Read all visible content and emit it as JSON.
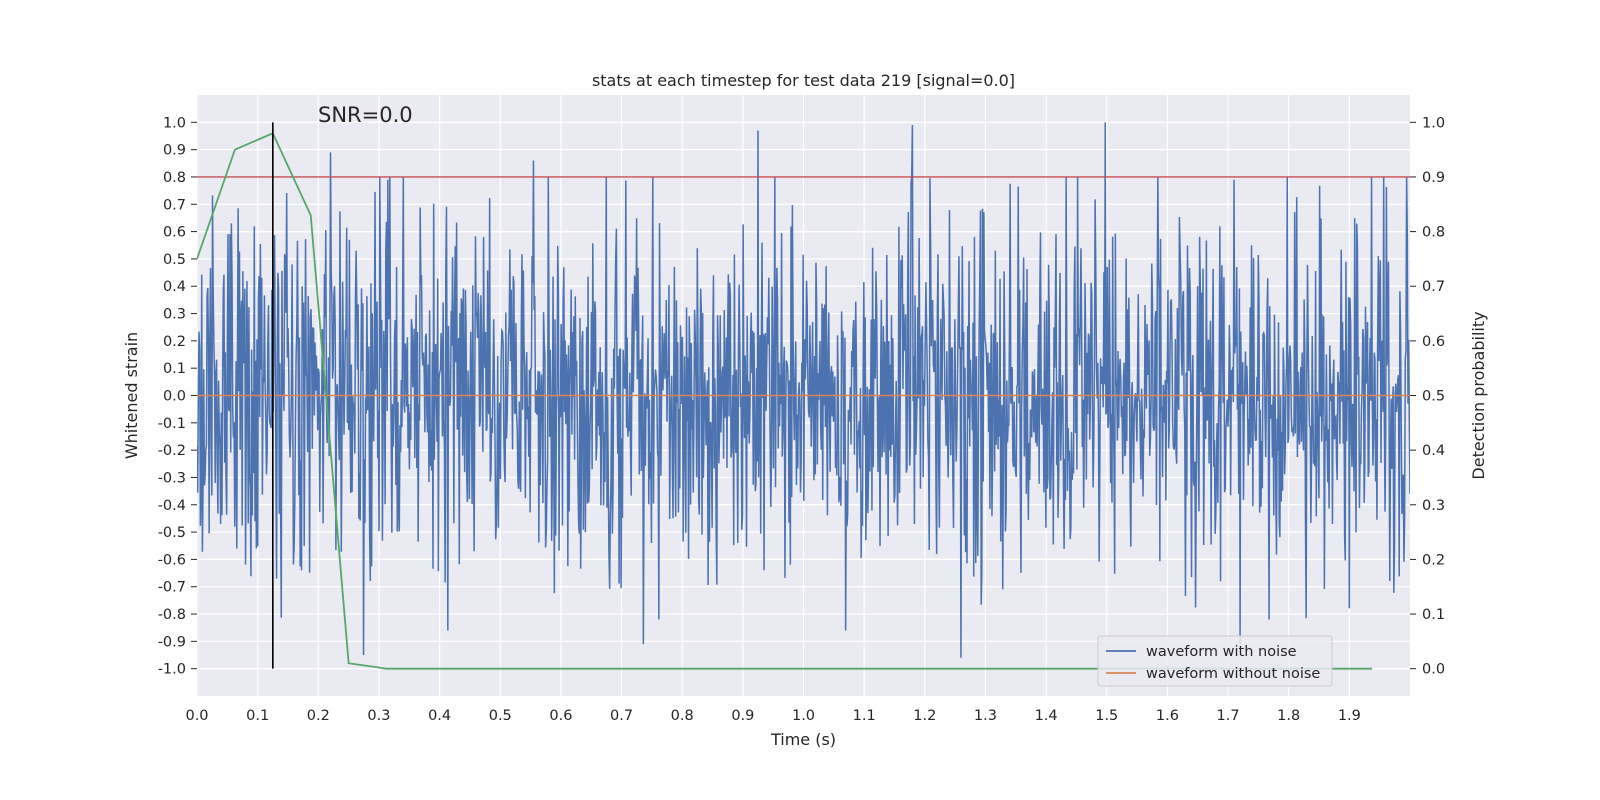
{
  "chart_data": {
    "type": "line",
    "title": "stats at each timestep for test data 219 [signal=0.0]",
    "xlabel": "Time (s)",
    "ylabel": "Whitened strain",
    "y2label": "Detection probability",
    "annotation": "SNR=0.0",
    "xlim": [
      0.0,
      2.0
    ],
    "ylim": [
      -1.1,
      1.1
    ],
    "y2lim": [
      -0.05,
      1.05
    ],
    "x_ticks": [
      "0.0",
      "0.1",
      "0.2",
      "0.3",
      "0.4",
      "0.5",
      "0.6",
      "0.7",
      "0.8",
      "0.9",
      "1.0",
      "1.1",
      "1.2",
      "1.3",
      "1.4",
      "1.5",
      "1.6",
      "1.7",
      "1.8",
      "1.9"
    ],
    "y_ticks": [
      "1.0",
      "0.9",
      "0.8",
      "0.7",
      "0.6",
      "0.5",
      "0.4",
      "0.3",
      "0.2",
      "0.1",
      "0.0",
      "-0.1",
      "-0.2",
      "-0.3",
      "-0.4",
      "-0.5",
      "-0.6",
      "-0.7",
      "-0.8",
      "-0.9",
      "-1.0"
    ],
    "y2_ticks": [
      "1.0",
      "0.9",
      "0.8",
      "0.7",
      "0.6",
      "0.5",
      "0.4",
      "0.3",
      "0.2",
      "0.1",
      "0.0"
    ],
    "threshold_probability": 0.9,
    "marker_time": 0.125,
    "legend": {
      "position": "bottom-right",
      "entries": [
        "waveform with noise",
        "waveform without noise"
      ]
    },
    "series": [
      {
        "name": "waveform with noise",
        "color": "#4c72b0",
        "axis": "left",
        "kind": "noise",
        "x_range": [
          0.0,
          2.0
        ],
        "n_samples": 1800,
        "value_range": [
          -0.96,
          1.0
        ],
        "peaks": [
          [
            0.22,
            0.89
          ],
          [
            0.555,
            0.86
          ],
          [
            0.925,
            0.97
          ],
          [
            1.18,
            0.99
          ],
          [
            1.498,
            1.0
          ],
          [
            1.26,
            -0.96
          ],
          [
            0.275,
            -0.95
          ],
          [
            1.07,
            -0.86
          ],
          [
            1.768,
            -0.82
          ],
          [
            0.762,
            -0.82
          ],
          [
            0.315,
            0.79
          ],
          [
            1.71,
            0.79
          ]
        ]
      },
      {
        "name": "waveform without noise",
        "color": "#dd8452",
        "axis": "left",
        "values_x": [
          0.0,
          2.0
        ],
        "values_y": [
          0.0,
          0.0
        ]
      },
      {
        "name": "detection probability",
        "color": "#55a868",
        "axis": "right",
        "x": [
          0.0,
          0.0625,
          0.125,
          0.1875,
          0.25,
          0.3125,
          0.375,
          0.5,
          0.75,
          1.0,
          1.25,
          1.5,
          1.75,
          1.9375
        ],
        "y": [
          0.75,
          0.95,
          0.98,
          0.83,
          0.01,
          0.0,
          0.0,
          0.0,
          0.0,
          0.0,
          0.0,
          0.0,
          0.0,
          0.0
        ]
      }
    ],
    "colors": {
      "background": "#eaeaf2",
      "grid": "#ffffff",
      "threshold": "#c44e52",
      "marker": "#000000"
    }
  }
}
